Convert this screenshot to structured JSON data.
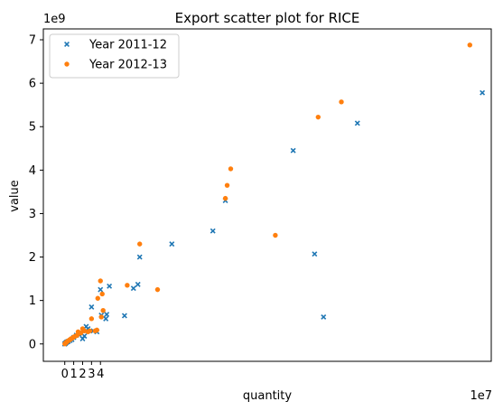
{
  "chart_data": {
    "type": "scatter",
    "title": "Export scatter plot for RICE",
    "xlabel": "quantity",
    "ylabel": "value",
    "x_offset_label": "1e7",
    "y_offset_label": "1e9",
    "xlim": [
      -2.4,
      47.8
    ],
    "ylim": [
      -0.4,
      7.25
    ],
    "xticks": [
      0,
      1,
      2,
      3,
      4
    ],
    "yticks": [
      0,
      1,
      2,
      3,
      4,
      5,
      6,
      7
    ],
    "grid": false,
    "legend_position": "top-left",
    "series": [
      {
        "name": "Year 2011-12",
        "marker": "x",
        "color": "#1f77b4",
        "points": [
          [
            46.8,
            5.78
          ],
          [
            32.8,
            5.08
          ],
          [
            25.6,
            4.45
          ],
          [
            18.0,
            3.3
          ],
          [
            16.6,
            2.6
          ],
          [
            12.0,
            2.3
          ],
          [
            28.0,
            2.07
          ],
          [
            29.0,
            0.62
          ],
          [
            8.4,
            2.0
          ],
          [
            8.2,
            1.37
          ],
          [
            7.7,
            1.28
          ],
          [
            6.7,
            0.65
          ],
          [
            5.0,
            1.33
          ],
          [
            4.7,
            0.68
          ],
          [
            4.6,
            0.58
          ],
          [
            4.0,
            1.25
          ],
          [
            4.1,
            0.66
          ],
          [
            3.0,
            0.85
          ],
          [
            3.2,
            0.3
          ],
          [
            3.6,
            0.28
          ],
          [
            2.6,
            0.35
          ],
          [
            2.4,
            0.4
          ],
          [
            2.2,
            0.18
          ],
          [
            2.0,
            0.12
          ],
          [
            1.6,
            0.22
          ],
          [
            1.3,
            0.2
          ],
          [
            1.0,
            0.15
          ],
          [
            0.8,
            0.1
          ],
          [
            0.6,
            0.08
          ],
          [
            0.4,
            0.06
          ],
          [
            0.3,
            0.05
          ],
          [
            0.2,
            0.04
          ],
          [
            0.15,
            0.03
          ],
          [
            0.1,
            0.02
          ],
          [
            0.05,
            0.01
          ],
          [
            0.02,
            0.005
          ],
          [
            0.0,
            0.0
          ]
        ]
      },
      {
        "name": "Year 2012-13",
        "marker": "o",
        "color": "#ff7f0e",
        "points": [
          [
            45.4,
            6.88
          ],
          [
            31.0,
            5.57
          ],
          [
            28.4,
            5.22
          ],
          [
            18.6,
            4.03
          ],
          [
            18.2,
            3.65
          ],
          [
            18.0,
            3.35
          ],
          [
            23.6,
            2.5
          ],
          [
            8.4,
            2.3
          ],
          [
            10.4,
            1.25
          ],
          [
            7.0,
            1.35
          ],
          [
            4.0,
            1.45
          ],
          [
            4.2,
            1.15
          ],
          [
            3.7,
            1.05
          ],
          [
            4.3,
            0.77
          ],
          [
            4.1,
            0.62
          ],
          [
            3.0,
            0.58
          ],
          [
            3.6,
            0.32
          ],
          [
            3.4,
            0.3
          ],
          [
            2.8,
            0.3
          ],
          [
            2.6,
            0.28
          ],
          [
            2.2,
            0.3
          ],
          [
            2.0,
            0.35
          ],
          [
            1.8,
            0.25
          ],
          [
            1.5,
            0.28
          ],
          [
            1.4,
            0.2
          ],
          [
            1.2,
            0.18
          ],
          [
            1.0,
            0.16
          ],
          [
            0.9,
            0.14
          ],
          [
            0.7,
            0.12
          ],
          [
            0.6,
            0.1
          ],
          [
            0.5,
            0.09
          ],
          [
            0.4,
            0.07
          ],
          [
            0.3,
            0.06
          ],
          [
            0.25,
            0.05
          ],
          [
            0.2,
            0.04
          ],
          [
            0.15,
            0.03
          ],
          [
            0.1,
            0.025
          ],
          [
            0.06,
            0.015
          ],
          [
            0.03,
            0.008
          ],
          [
            0.01,
            0.002
          ]
        ]
      }
    ]
  }
}
